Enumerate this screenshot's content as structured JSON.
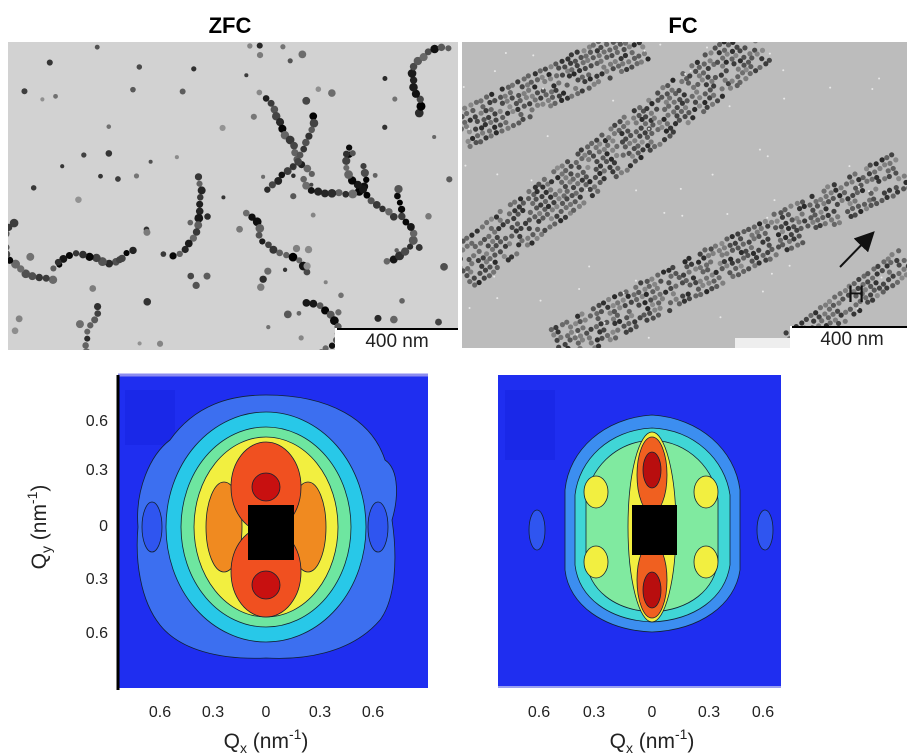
{
  "panels": [
    {
      "title": "ZFC",
      "scale_bar": "400 nm"
    },
    {
      "title": "FC",
      "scale_bar": "400 nm",
      "field_label": "H"
    }
  ],
  "plots": [
    {
      "x_ticks": [
        "0.6",
        "0.3",
        "0",
        "0.3",
        "0.6"
      ],
      "y_ticks": [
        "0.6",
        "0.3",
        "0",
        "0.3",
        "0.6"
      ],
      "x_label": {
        "symbol": "Q",
        "subscript": "x",
        "unit_open": " (nm",
        "superscript": "-1",
        "unit_close": ")"
      },
      "y_label": {
        "symbol": "Q",
        "subscript": "y",
        "unit_open": " (nm",
        "superscript": "-1",
        "unit_close": ")"
      }
    },
    {
      "x_ticks": [
        "0.6",
        "0.3",
        "0",
        "0.3",
        "0.6"
      ],
      "x_label": {
        "symbol": "Q",
        "subscript": "x",
        "unit_open": " (nm",
        "superscript": "-1",
        "unit_close": ")"
      }
    }
  ]
}
